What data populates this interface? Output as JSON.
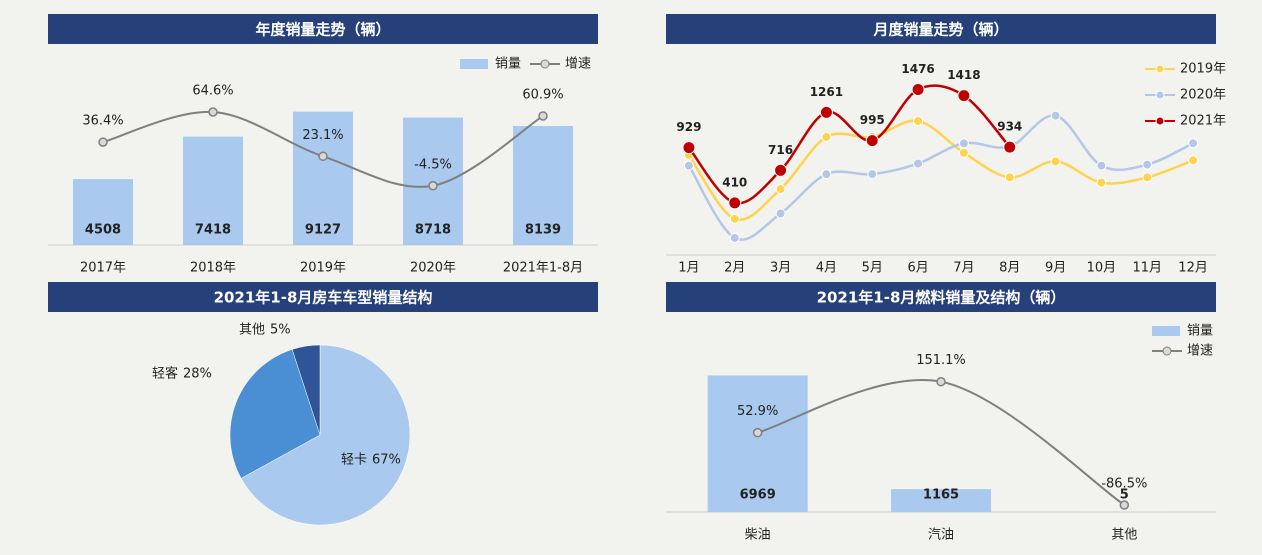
{
  "chart_data": [
    {
      "type": "combo",
      "title": "年度销量走势（辆）",
      "categories": [
        "2017年",
        "2018年",
        "2019年",
        "2020年",
        "2021年1-8月"
      ],
      "series": [
        {
          "name": "销量",
          "type": "bar",
          "color": "#a9c9ee",
          "values": [
            4508,
            7418,
            9127,
            8718,
            8139
          ]
        },
        {
          "name": "增速",
          "type": "line",
          "axis": "y2",
          "color": "#7f7f7f",
          "values": [
            36.4,
            64.6,
            23.1,
            -4.5,
            60.9
          ],
          "value_labels": [
            "36.4%",
            "64.6%",
            "23.1%",
            "-4.5%",
            "60.9%"
          ]
        }
      ],
      "ylim": [
        0,
        13000
      ],
      "y2lim": [
        -60,
        118
      ],
      "legend": "top-right"
    },
    {
      "type": "line",
      "title": "月度销量走势（辆）",
      "categories": [
        "1月",
        "2月",
        "3月",
        "4月",
        "5月",
        "6月",
        "7月",
        "8月",
        "9月",
        "10月",
        "11月",
        "12月"
      ],
      "series": [
        {
          "name": "2019年",
          "color": "#ffd34d",
          "values": [
            860,
            260,
            540,
            1030,
            1030,
            1180,
            880,
            650,
            800,
            600,
            650,
            810
          ]
        },
        {
          "name": "2020年",
          "color": "#b4c7e7",
          "values": [
            760,
            80,
            310,
            680,
            680,
            780,
            970,
            940,
            1230,
            760,
            770,
            970
          ]
        },
        {
          "name": "2021年",
          "color": "#c00000",
          "data_labels": true,
          "values": [
            929,
            410,
            716,
            1261,
            995,
            1476,
            1418,
            934,
            null,
            null,
            null,
            null
          ]
        }
      ],
      "ylim": [
        -80,
        1800
      ],
      "legend": "top-right"
    },
    {
      "type": "pie",
      "title": "2021年1-8月房车车型销量结构",
      "categories": [
        "轻卡",
        "轻客",
        "其他"
      ],
      "values": [
        67,
        28,
        5
      ],
      "value_labels": [
        "67%",
        "28%",
        "5%"
      ],
      "colors": [
        "#a9c9ee",
        "#4a8fd4",
        "#2f5597"
      ]
    },
    {
      "type": "combo",
      "title": "2021年1-8月燃料销量及结构（辆）",
      "categories": [
        "柴油",
        "汽油",
        "其他"
      ],
      "series": [
        {
          "name": "销量",
          "type": "bar",
          "color": "#a9c9ee",
          "values": [
            6969,
            1165,
            5
          ]
        },
        {
          "name": "增速",
          "type": "line",
          "axis": "y2",
          "color": "#7f7f7f",
          "values": [
            52.9,
            151.1,
            -86.5
          ],
          "value_labels": [
            "52.9%",
            "151.1%",
            "-86.5%"
          ]
        }
      ],
      "ylim": [
        0,
        9800
      ],
      "y2lim": [
        -100,
        270
      ],
      "legend": "top-right"
    }
  ]
}
